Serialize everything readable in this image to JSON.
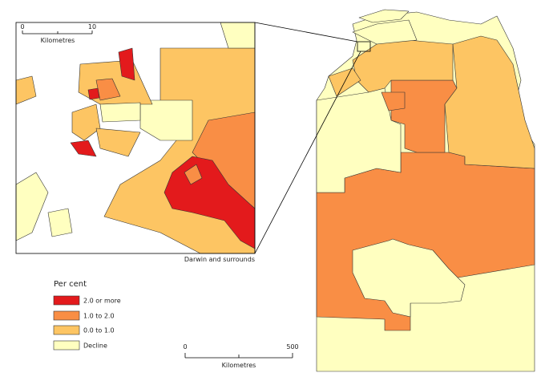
{
  "inset": {
    "scale": {
      "start": "0",
      "end": "10",
      "unit": "Kilometres"
    },
    "caption": "Darwin and surrounds"
  },
  "legend": {
    "title": "Per cent",
    "items": [
      {
        "label": "2.0 or more",
        "color": "#e31a1c"
      },
      {
        "label": "1.0 to 2.0",
        "color": "#f98e45"
      },
      {
        "label": "0.0 to 1.0",
        "color": "#fdc563"
      },
      {
        "label": "Decline",
        "color": "#ffffc0"
      }
    ]
  },
  "scale": {
    "start": "0",
    "end": "500",
    "unit": "Kilometres"
  }
}
